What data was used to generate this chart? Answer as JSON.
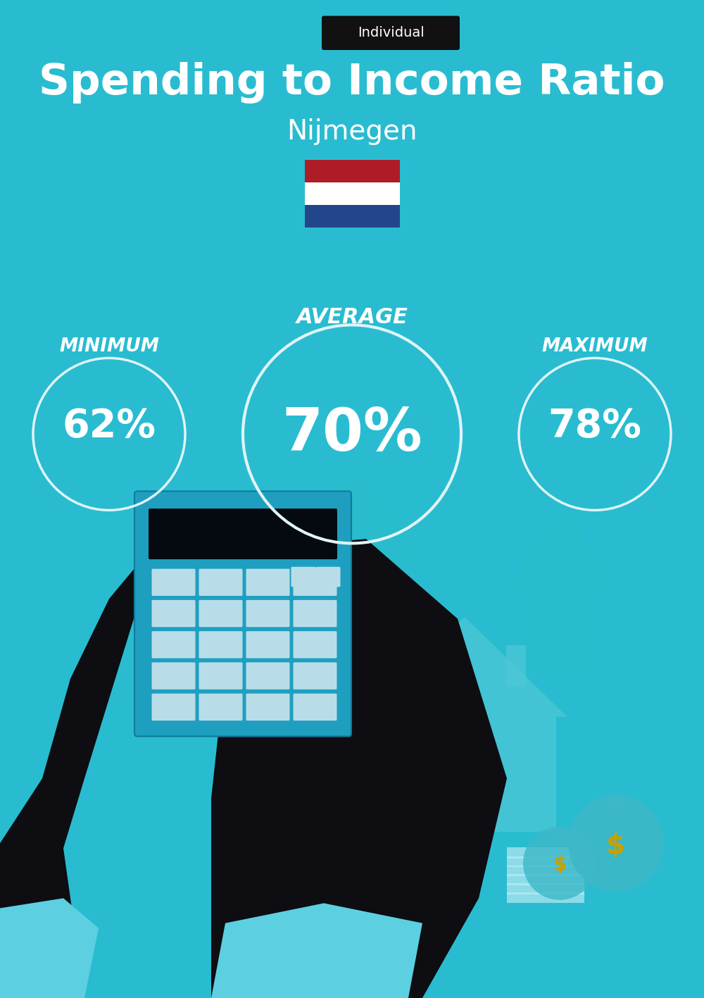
{
  "title": "Spending to Income Ratio",
  "subtitle": "Nijmegen",
  "label_tag": "Individual",
  "bg_color": "#29bcd0",
  "text_color": "#ffffff",
  "tag_bg_color": "#111111",
  "tag_text_color": "#ffffff",
  "min_label": "MINIMUM",
  "avg_label": "AVERAGE",
  "max_label": "MAXIMUM",
  "min_value": "62%",
  "avg_value": "70%",
  "max_value": "78%",
  "circle_color": "#e0f4f8",
  "flag_colors_top_to_bottom": [
    "#AE1C28",
    "#ffffff",
    "#21468B"
  ],
  "arrow_color": "#2abccc",
  "hand_color": "#0d0d12",
  "calc_body_color": "#1e9fc0",
  "calc_screen_color": "#050a10",
  "calc_btn_color": "#b8dde8",
  "house_color": "#4dc8d8",
  "money_bag_color": "#3db8c8",
  "dollar_color": "#c8a000",
  "cuff_color": "#5cd0e0",
  "bill_color": "#c0eef5",
  "title_fontsize": 44,
  "subtitle_fontsize": 28,
  "tag_fontsize": 14,
  "avg_label_fontsize": 22,
  "side_label_fontsize": 19,
  "avg_value_fontsize": 60,
  "side_value_fontsize": 40
}
